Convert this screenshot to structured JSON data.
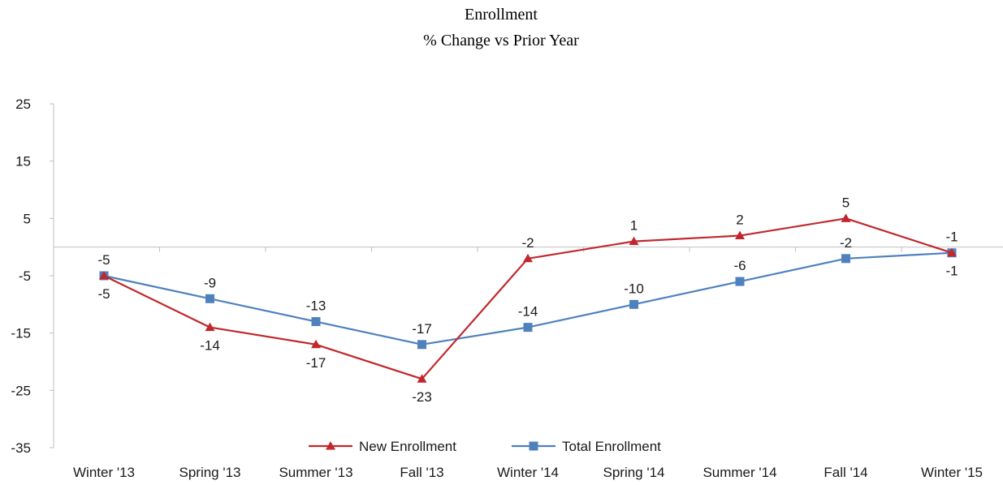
{
  "chart_data": {
    "type": "line",
    "title": "Enrollment",
    "subtitle": "% Change vs Prior Year",
    "xlabel": "",
    "ylabel": "",
    "ylim": [
      -35,
      25
    ],
    "y_ticks": [
      25,
      15,
      5,
      -5,
      -15,
      -25,
      -35
    ],
    "categories": [
      "Winter '13",
      "Spring '13",
      "Summer '13",
      "Fall '13",
      "Winter '14",
      "Spring '14",
      "Summer '14",
      "Fall '14",
      "Winter '15"
    ],
    "series": [
      {
        "name": "New Enrollment",
        "color": "#c0282d",
        "marker": "triangle",
        "values": [
          -5,
          -14,
          -17,
          -23,
          -2,
          1,
          2,
          5,
          -1
        ],
        "label_position": [
          "below",
          "below",
          "below",
          "below",
          "above",
          "above",
          "above",
          "above",
          "below"
        ]
      },
      {
        "name": "Total Enrollment",
        "color": "#4f81bd",
        "marker": "square",
        "values": [
          -5,
          -9,
          -13,
          -17,
          -14,
          -10,
          -6,
          -2,
          -1
        ],
        "label_position": [
          "above",
          "above",
          "above",
          "above",
          "above",
          "above",
          "above",
          "above",
          "above"
        ]
      }
    ],
    "legend": {
      "position": "bottom"
    },
    "grid": false
  }
}
